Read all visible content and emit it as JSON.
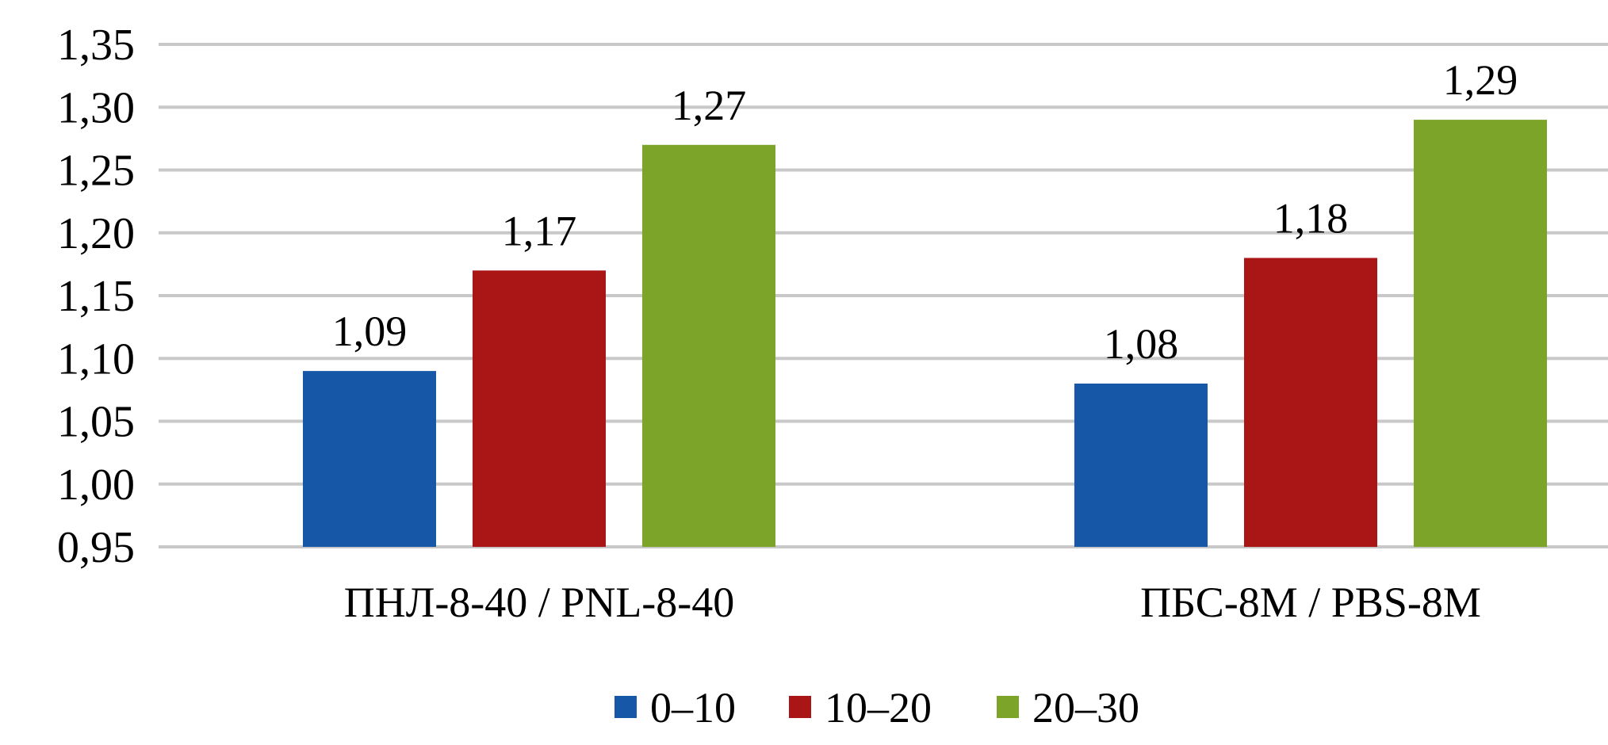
{
  "chart_data": {
    "type": "bar",
    "categories": [
      "ПНЛ-8-40 / PNL-8-40",
      "ПБС-8М / PBS-8M"
    ],
    "series": [
      {
        "name": "0–10",
        "color": "#1757a8",
        "values": [
          1.09,
          1.08
        ],
        "labels": [
          "1,09",
          "1,08"
        ]
      },
      {
        "name": "10–20",
        "color": "#aa1616",
        "values": [
          1.17,
          1.18
        ],
        "labels": [
          "1,17",
          "1,18"
        ]
      },
      {
        "name": "20–30",
        "color": "#7ba428",
        "values": [
          1.27,
          1.29
        ],
        "labels": [
          "1,27",
          "1,29"
        ]
      }
    ],
    "ylim": [
      0.95,
      1.35
    ],
    "yticks": [
      0.95,
      1.0,
      1.05,
      1.1,
      1.15,
      1.2,
      1.25,
      1.3,
      1.35
    ],
    "ytick_labels": [
      "0,95",
      "1,00",
      "1,05",
      "1,10",
      "1,15",
      "1,20",
      "1,25",
      "1,30",
      "1,35"
    ],
    "title": "",
    "xlabel": "",
    "ylabel": "",
    "grid": true,
    "legend_position": "bottom-center",
    "grid_color": "#c8c8c8"
  }
}
